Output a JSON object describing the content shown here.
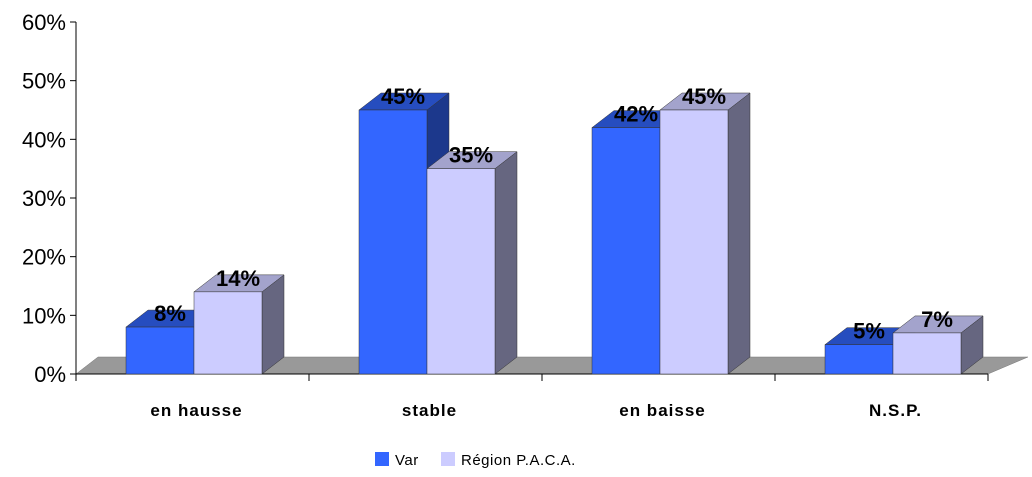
{
  "chart_data": {
    "type": "bar",
    "style": "3d-clustered-column",
    "categories": [
      "en hausse",
      "stable",
      "en baisse",
      "N.S.P."
    ],
    "series": [
      {
        "name": "Var",
        "values": [
          8,
          45,
          42,
          5
        ],
        "labels": [
          "8%",
          "45%",
          "42%",
          "5%"
        ],
        "color": "#3366ff"
      },
      {
        "name": "Région P.A.C.A.",
        "values": [
          14,
          35,
          45,
          7
        ],
        "labels": [
          "14%",
          "35%",
          "45%",
          "7%"
        ],
        "color": "#ccccff"
      }
    ],
    "y_ticks": [
      "0%",
      "10%",
      "20%",
      "30%",
      "40%",
      "50%",
      "60%"
    ],
    "ylim": [
      0,
      60
    ],
    "y_unit": "%",
    "grid": false,
    "legend_position": "bottom",
    "floor_color": "#999999"
  }
}
